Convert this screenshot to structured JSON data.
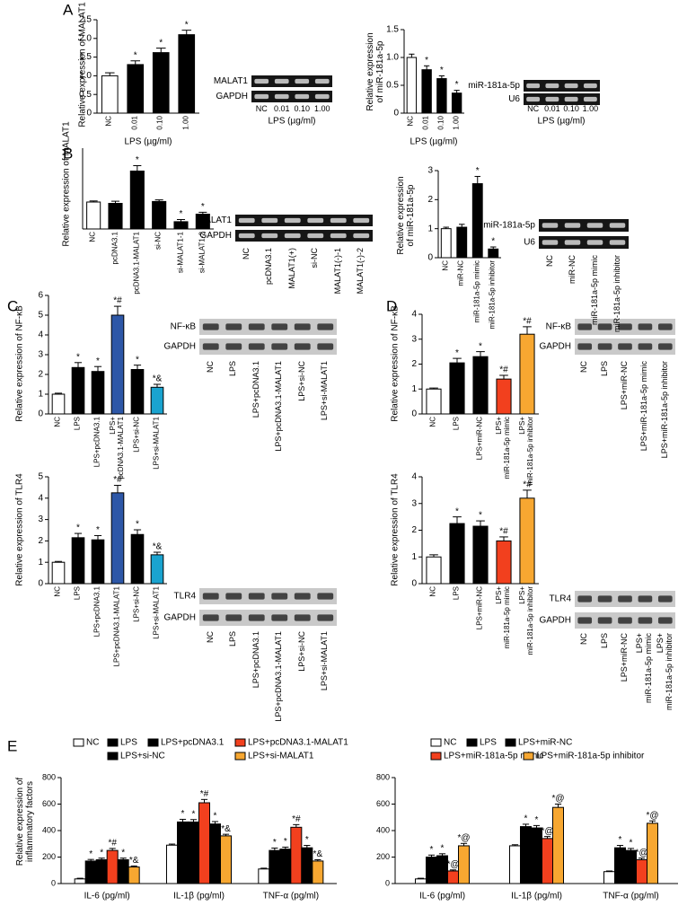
{
  "chart_data": [
    {
      "type": "bar",
      "panel": "A",
      "ylabel": "Relative expression of MALAT1",
      "xlabel": "LPS (µg/ml)",
      "categories": [
        "NC",
        "0.01",
        "0.10",
        "1.00"
      ],
      "values": [
        1.0,
        1.3,
        1.62,
        2.1
      ],
      "errors": [
        0.08,
        0.1,
        0.12,
        0.12
      ],
      "annotations": [
        null,
        "*",
        "*",
        "*"
      ],
      "colors": [
        "#ffffff",
        "#000000",
        "#000000",
        "#000000"
      ],
      "ylim": [
        0,
        2.5
      ],
      "yticks": [
        0,
        0.5,
        {
          "value": 1,
          "label": "1.0"
        },
        1.5,
        {
          "value": 2,
          "label": "2.0"
        },
        2.5
      ]
    },
    {
      "type": "blot",
      "rows": [
        "MALAT1",
        "GAPDH"
      ],
      "lanes": [
        "NC",
        "0.01",
        "0.10",
        "1.00"
      ],
      "xlabel": "LPS (µg/ml)"
    },
    {
      "type": "bar",
      "ylabel": "Relative expression\nof miR-181a-5p",
      "xlabel": "LPS (µg/ml)",
      "categories": [
        "NC",
        "0.01",
        "0.10",
        "1.00"
      ],
      "values": [
        1.0,
        0.78,
        0.62,
        0.36
      ],
      "errors": [
        0.06,
        0.07,
        0.05,
        0.05
      ],
      "annotations": [
        null,
        "*",
        "*",
        "*"
      ],
      "colors": [
        "#ffffff",
        "#000000",
        "#000000",
        "#000000"
      ],
      "ylim": [
        0,
        1.5
      ],
      "yticks": [
        0,
        0.5,
        {
          "value": 1,
          "label": "1.0"
        },
        1.5
      ]
    },
    {
      "type": "blot",
      "rows": [
        "miR-181a-5p",
        "U6"
      ],
      "lanes": [
        "NC",
        "0.01",
        "0.10",
        "1.00"
      ],
      "xlabel": "LPS (µg/ml)"
    },
    {
      "type": "bar",
      "panel": "B",
      "ylabel": "Relative expression of MALAT1",
      "categories": [
        "NC",
        "pcDNA3.1",
        "pcDNA3.1-MALAT1",
        "si-NC",
        "si-MALAT1-1",
        "si-MALAT1-2"
      ],
      "values": [
        1.0,
        0.95,
        2.15,
        1.02,
        0.27,
        0.55
      ],
      "errors": [
        0.04,
        0.08,
        0.2,
        0.06,
        0.08,
        0.07
      ],
      "annotations": [
        null,
        null,
        "*",
        null,
        "*",
        "*"
      ],
      "colors": [
        "#ffffff",
        "#000000",
        "#000000",
        "#000000",
        "#000000",
        "#000000"
      ],
      "ylim": [
        0,
        3
      ]
    },
    {
      "type": "blot",
      "rows": [
        "MALAT1",
        "GAPDH"
      ],
      "lanes": [
        "NC",
        "pcDNA3.1",
        "MALAT1(+)",
        "si-NC",
        "MALAT1(-)-1",
        "MALAT1(-)-2"
      ]
    },
    {
      "type": "bar",
      "ylabel": "Relative expression\nof miR-181a-5p",
      "categories": [
        "NC",
        "miR-NC",
        "miR-181a-5p mimic",
        "miR-181a-5p inhibitor"
      ],
      "values": [
        1.0,
        1.05,
        2.55,
        0.3
      ],
      "errors": [
        0.05,
        0.1,
        0.25,
        0.07
      ],
      "annotations": [
        null,
        null,
        "*",
        "*"
      ],
      "colors": [
        "#ffffff",
        "#000000",
        "#000000",
        "#000000"
      ],
      "ylim": [
        0,
        3
      ],
      "yticks": [
        0,
        1,
        2,
        3
      ]
    },
    {
      "type": "blot",
      "rows": [
        "miR-181a-5p",
        "U6"
      ],
      "lanes": [
        "NC",
        "miR-NC",
        "miR-181a-5p mimic",
        "miR-181a-5p inhibitor"
      ]
    },
    {
      "type": "bar",
      "panel": "C",
      "ylabel": "Relative expression of NF-κB",
      "categories": [
        "NC",
        "LPS",
        "LPS+pcDNA3.1",
        "LPS+\npcDNA3.1-MALAT1",
        "LPS+si-NC",
        "LPS+si-MALAT1"
      ],
      "values": [
        1.0,
        2.35,
        2.15,
        5.0,
        2.25,
        1.35
      ],
      "errors": [
        0.05,
        0.25,
        0.25,
        0.45,
        0.22,
        0.15
      ],
      "annotations": [
        null,
        "*",
        "*",
        "*#",
        "*",
        "*&"
      ],
      "colors": [
        "#ffffff",
        "#000000",
        "#000000",
        "#2d57a7",
        "#000000",
        "#1aa3cf"
      ],
      "ylim": [
        0,
        6
      ],
      "yticks": [
        0,
        1,
        2,
        3,
        4,
        5,
        6
      ]
    },
    {
      "type": "blot",
      "rows": [
        "NF-κB",
        "GAPDH"
      ],
      "lanes": [
        "NC",
        "LPS",
        "LPS+pcDNA3.1",
        "LPS+pcDNA3.1-MALAT1",
        "LPS+si-NC",
        "LPS+si-MALAT1"
      ]
    },
    {
      "type": "bar",
      "panel": "D",
      "ylabel": "Relative expression of NF-κB",
      "categories": [
        "NC",
        "LPS",
        "LPS+miR-NC",
        "LPS+\nmiR-181a-5p mimic",
        "LPS+\nmiR-181a-5p inhibitor"
      ],
      "values": [
        1.0,
        2.05,
        2.3,
        1.4,
        3.2
      ],
      "errors": [
        0.04,
        0.18,
        0.2,
        0.15,
        0.3
      ],
      "annotations": [
        null,
        "*",
        "*",
        "*#",
        "*#"
      ],
      "colors": [
        "#ffffff",
        "#000000",
        "#000000",
        "#f2401e",
        "#f7a731"
      ],
      "ylim": [
        0,
        4
      ],
      "yticks": [
        0,
        1,
        2,
        3,
        4
      ]
    },
    {
      "type": "blot",
      "rows": [
        "NF-κB",
        "GAPDH"
      ],
      "lanes": [
        "NC",
        "LPS",
        "LPS+miR-NC",
        "LPS+miR-181a-5p mimic",
        "LPS+miR-181a-5p inhibitor"
      ]
    },
    {
      "type": "bar",
      "ylabel": "Relative expression of TLR4",
      "categories": [
        "NC",
        "LPS",
        "LPS+pcDNA3.1",
        "LPS+pcDNA3.1-MALAT1",
        "LPS+si-NC",
        "LPS+si-MALAT1"
      ],
      "values": [
        1.0,
        2.15,
        2.05,
        4.25,
        2.3,
        1.35
      ],
      "errors": [
        0.04,
        0.2,
        0.2,
        0.35,
        0.22,
        0.12
      ],
      "annotations": [
        null,
        "*",
        "*",
        "*#",
        "*",
        "*&"
      ],
      "colors": [
        "#ffffff",
        "#000000",
        "#000000",
        "#2d57a7",
        "#000000",
        "#1aa3cf"
      ],
      "ylim": [
        0,
        5
      ],
      "yticks": [
        0,
        1,
        2,
        3,
        4,
        5
      ]
    },
    {
      "type": "blot",
      "rows": [
        "TLR4",
        "GAPDH"
      ],
      "lanes": [
        "NC",
        "LPS",
        "LPS+pcDNA3.1",
        "LPS+pcDNA3.1-MALAT1",
        "LPS+si-NC",
        "LPS+si-MALAT1"
      ]
    },
    {
      "type": "bar",
      "ylabel": "Relative expression of TLR4",
      "categories": [
        "NC",
        "LPS",
        "LPS+miR-NC",
        "LPS+\nmiR-181a-5p mimic",
        "LPS+\nmiR-181a-5p inhibitor"
      ],
      "values": [
        1.0,
        2.25,
        2.15,
        1.6,
        3.2
      ],
      "errors": [
        0.08,
        0.25,
        0.2,
        0.15,
        0.3
      ],
      "annotations": [
        null,
        "*",
        "*",
        "*#",
        "*#"
      ],
      "colors": [
        "#ffffff",
        "#000000",
        "#000000",
        "#f2401e",
        "#f7a731"
      ],
      "ylim": [
        0,
        4
      ],
      "yticks": [
        0,
        1,
        2,
        3,
        4
      ]
    },
    {
      "type": "blot",
      "rows": [
        "TLR4",
        "GAPDH"
      ],
      "lanes": [
        "NC",
        "LPS",
        "LPS+miR-NC",
        "LPS+\nmiR-181a-5p mimic",
        "LPS+\nmiR-181a-5p inhibitor"
      ]
    },
    {
      "type": "bar",
      "panel": "E",
      "ylabel": "Relative expression of\ninflammatory factors",
      "categories": [
        "IL-6 (pg/ml)",
        "IL-1β (pg/ml)",
        "TNF-α (pg/ml)"
      ],
      "ylim": [
        0,
        800
      ],
      "yticks": [
        0,
        200,
        400,
        600,
        800
      ],
      "series": [
        {
          "name": "NC",
          "color": "#ffffff",
          "values": [
            35,
            290,
            110
          ],
          "errors": [
            5,
            8,
            6
          ]
        },
        {
          "name": "LPS",
          "color": "#000000",
          "values": [
            170,
            465,
            250
          ],
          "errors": [
            12,
            20,
            18
          ],
          "annotations": [
            "*",
            "*",
            "*"
          ]
        },
        {
          "name": "LPS+pcDNA3.1",
          "color": "#000000",
          "values": [
            180,
            465,
            260
          ],
          "errors": [
            12,
            18,
            15
          ],
          "annotations": [
            "*",
            "*",
            "*"
          ]
        },
        {
          "name": "LPS+pcDNA3.1-MALAT1",
          "color": "#f2401e",
          "values": [
            250,
            610,
            425
          ],
          "errors": [
            15,
            25,
            20
          ],
          "annotations": [
            "*#",
            "*#",
            "*#"
          ]
        },
        {
          "name": "LPS+si-NC",
          "color": "#000000",
          "values": [
            180,
            450,
            270
          ],
          "errors": [
            12,
            18,
            18
          ],
          "annotations": [
            "*",
            "*",
            "*"
          ]
        },
        {
          "name": "LPS+si-MALAT1",
          "color": "#f7a731",
          "values": [
            125,
            360,
            170
          ],
          "errors": [
            8,
            12,
            10
          ],
          "annotations": [
            "*&",
            "*&",
            "*&"
          ]
        }
      ]
    },
    {
      "type": "bar",
      "categories": [
        "IL-6 (pg/ml)",
        "IL-1β (pg/ml)",
        "TNF-α (pg/ml)"
      ],
      "ylim": [
        0,
        800
      ],
      "yticks": [
        0,
        200,
        400,
        600,
        800
      ],
      "series": [
        {
          "name": "NC",
          "color": "#ffffff",
          "values": [
            35,
            285,
            90
          ],
          "errors": [
            5,
            8,
            5
          ]
        },
        {
          "name": "LPS",
          "color": "#000000",
          "values": [
            200,
            430,
            270
          ],
          "errors": [
            15,
            18,
            18
          ],
          "annotations": [
            "*",
            "*",
            "*"
          ]
        },
        {
          "name": "LPS+miR-NC",
          "color": "#000000",
          "values": [
            210,
            420,
            250
          ],
          "errors": [
            15,
            18,
            15
          ],
          "annotations": [
            "*",
            "*",
            "*"
          ]
        },
        {
          "name": "LPS+miR-181a-5p mimic",
          "color": "#f2401e",
          "values": [
            95,
            340,
            180
          ],
          "errors": [
            8,
            15,
            12
          ],
          "annotations": [
            "*@",
            "*@",
            "*@"
          ]
        },
        {
          "name": "LPS+miR-181a-5p inhibitor",
          "color": "#f7a731",
          "values": [
            285,
            575,
            455
          ],
          "errors": [
            18,
            25,
            18
          ],
          "annotations": [
            "*@",
            "*@",
            "*@"
          ]
        }
      ]
    }
  ]
}
